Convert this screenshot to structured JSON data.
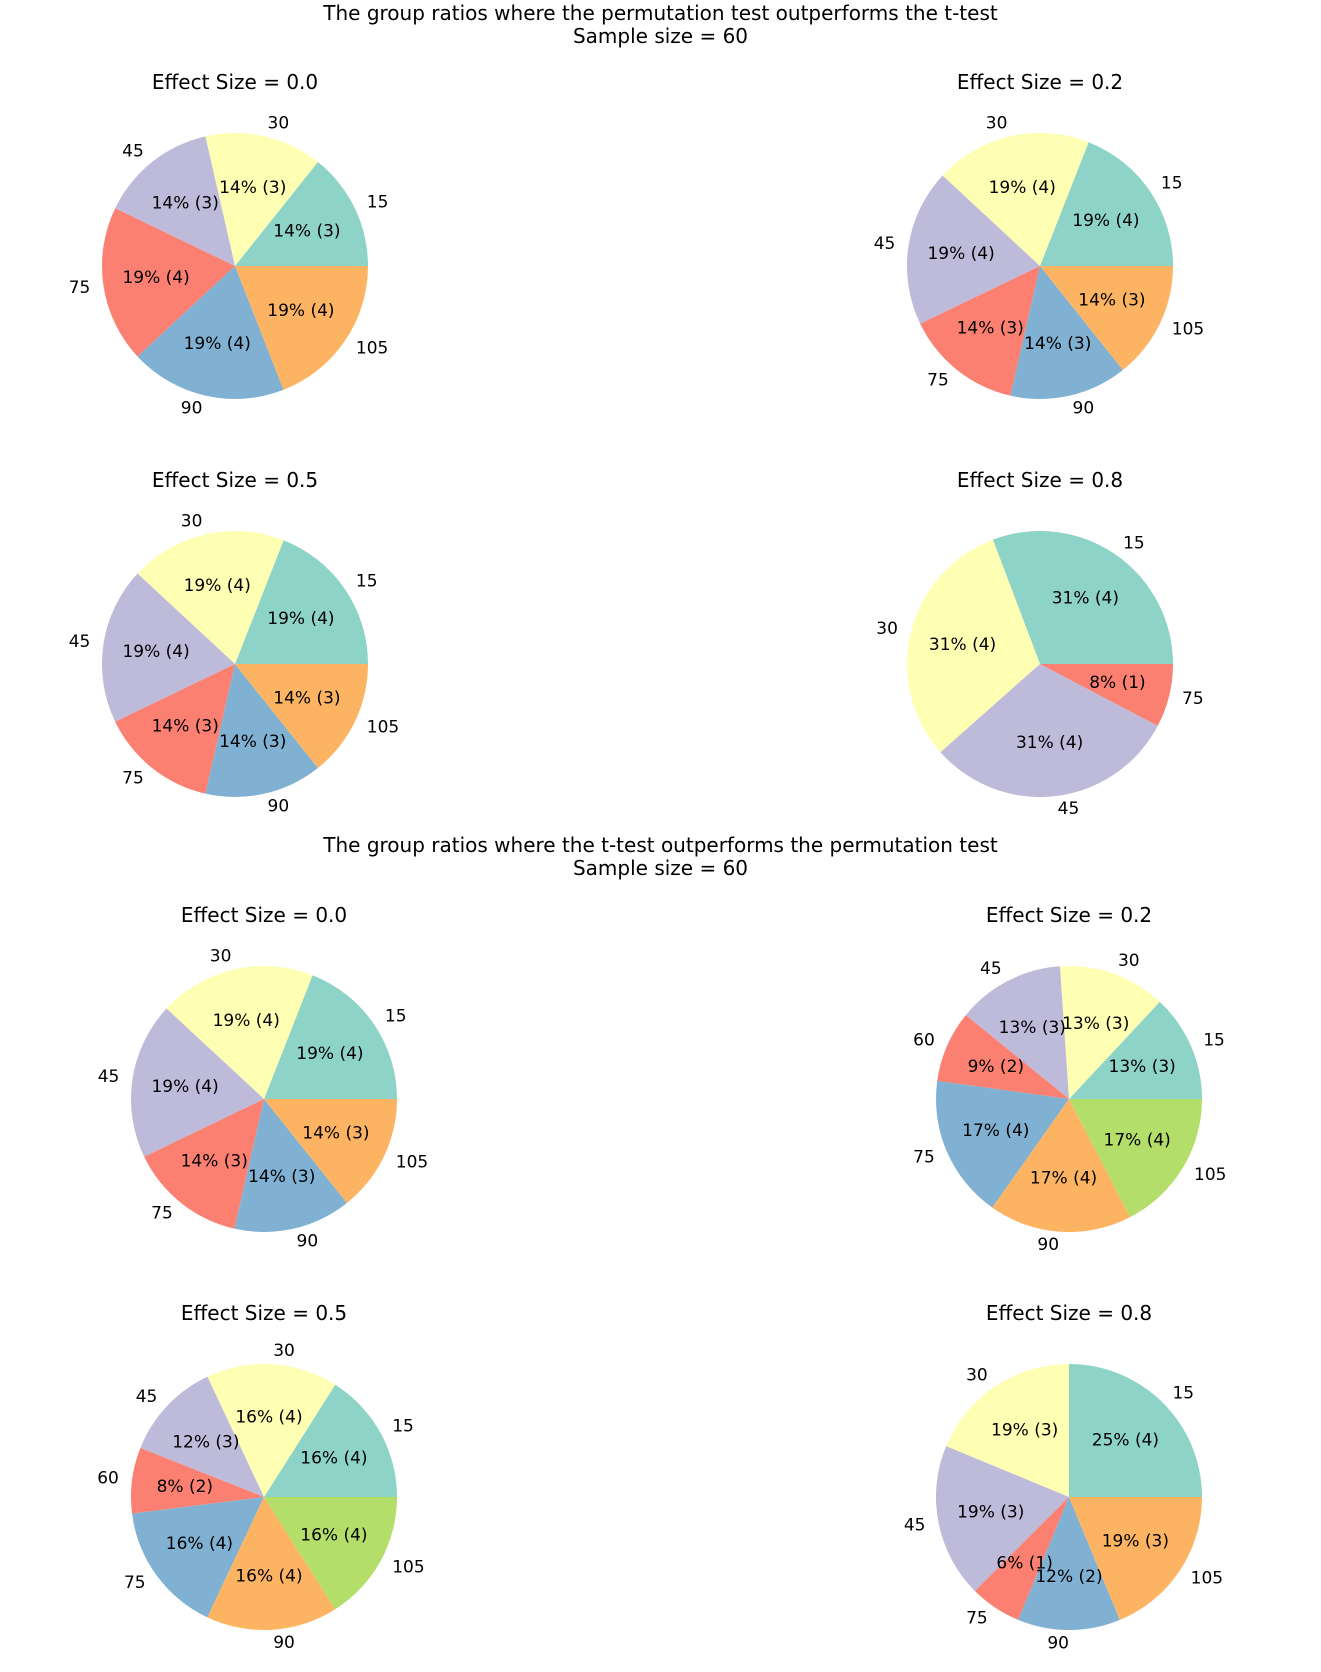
{
  "sections": [
    {
      "title_line1": "The group ratios where the permutation test outperforms the t-test",
      "title_line2": "Sample size = 60"
    },
    {
      "title_line1": "The group ratios where the t-test outperforms the permutation test",
      "title_line2": "Sample size = 60"
    }
  ],
  "colors": {
    "15": "#8dd3c7",
    "30": "#ffffb3",
    "45": "#bebada",
    "60": "#fb8072",
    "75_a": "#fb8072",
    "75_b": "#80b1d3",
    "90_a": "#80b1d3",
    "90_b": "#fdb462",
    "105_a": "#fdb462",
    "105_b": "#b3de69"
  },
  "chart_data": [
    {
      "type": "pie",
      "title": "Effect Size =  0.0",
      "labels": [
        "15",
        "30",
        "45",
        "75",
        "90",
        "105"
      ],
      "values": [
        3,
        3,
        3,
        4,
        4,
        4
      ],
      "autopct": [
        "14% (3)",
        "14% (3)",
        "14% (3)",
        "19% (4)",
        "19% (4)",
        "19% (4)"
      ],
      "colors": [
        "#8dd3c7",
        "#ffffb3",
        "#bebada",
        "#fb8072",
        "#80b1d3",
        "#fdb462"
      ]
    },
    {
      "type": "pie",
      "title": "Effect Size =  0.2",
      "labels": [
        "15",
        "30",
        "45",
        "75",
        "90",
        "105"
      ],
      "values": [
        4,
        4,
        4,
        3,
        3,
        3
      ],
      "autopct": [
        "19% (4)",
        "19% (4)",
        "19% (4)",
        "14% (3)",
        "14% (3)",
        "14% (3)"
      ],
      "colors": [
        "#8dd3c7",
        "#ffffb3",
        "#bebada",
        "#fb8072",
        "#80b1d3",
        "#fdb462"
      ]
    },
    {
      "type": "pie",
      "title": "Effect Size =  0.5",
      "labels": [
        "15",
        "30",
        "45",
        "75",
        "90",
        "105"
      ],
      "values": [
        4,
        4,
        4,
        3,
        3,
        3
      ],
      "autopct": [
        "19% (4)",
        "19% (4)",
        "19% (4)",
        "14% (3)",
        "14% (3)",
        "14% (3)"
      ],
      "colors": [
        "#8dd3c7",
        "#ffffb3",
        "#bebada",
        "#fb8072",
        "#80b1d3",
        "#fdb462"
      ]
    },
    {
      "type": "pie",
      "title": "Effect Size =  0.8",
      "labels": [
        "15",
        "30",
        "45",
        "75"
      ],
      "values": [
        4,
        4,
        4,
        1
      ],
      "autopct": [
        "31% (4)",
        "31% (4)",
        "31% (4)",
        "8% (1)"
      ],
      "colors": [
        "#8dd3c7",
        "#ffffb3",
        "#bebada",
        "#fb8072"
      ]
    },
    {
      "type": "pie",
      "title": "Effect Size =  0.0",
      "labels": [
        "15",
        "30",
        "45",
        "75",
        "90",
        "105"
      ],
      "values": [
        4,
        4,
        4,
        3,
        3,
        3
      ],
      "autopct": [
        "19% (4)",
        "19% (4)",
        "19% (4)",
        "14% (3)",
        "14% (3)",
        "14% (3)"
      ],
      "colors": [
        "#8dd3c7",
        "#ffffb3",
        "#bebada",
        "#fb8072",
        "#80b1d3",
        "#fdb462"
      ]
    },
    {
      "type": "pie",
      "title": "Effect Size =  0.2",
      "labels": [
        "15",
        "30",
        "45",
        "60",
        "75",
        "90",
        "105"
      ],
      "values": [
        3,
        3,
        3,
        2,
        4,
        4,
        4
      ],
      "autopct": [
        "13% (3)",
        "13% (3)",
        "13% (3)",
        "9% (2)",
        "17% (4)",
        "17% (4)",
        "17% (4)"
      ],
      "colors": [
        "#8dd3c7",
        "#ffffb3",
        "#bebada",
        "#fb8072",
        "#80b1d3",
        "#fdb462",
        "#b3de69"
      ]
    },
    {
      "type": "pie",
      "title": "Effect Size =  0.5",
      "labels": [
        "15",
        "30",
        "45",
        "60",
        "75",
        "90",
        "105"
      ],
      "values": [
        4,
        4,
        3,
        2,
        4,
        4,
        4
      ],
      "autopct": [
        "16% (4)",
        "16% (4)",
        "12% (3)",
        "8% (2)",
        "16% (4)",
        "16% (4)",
        "16% (4)"
      ],
      "colors": [
        "#8dd3c7",
        "#ffffb3",
        "#bebada",
        "#fb8072",
        "#80b1d3",
        "#fdb462",
        "#b3de69"
      ]
    },
    {
      "type": "pie",
      "title": "Effect Size =  0.8",
      "labels": [
        "15",
        "30",
        "45",
        "75",
        "90",
        "105"
      ],
      "values": [
        4,
        3,
        3,
        1,
        2,
        3
      ],
      "autopct": [
        "25% (4)",
        "19% (3)",
        "19% (3)",
        "6% (1)",
        "12% (2)",
        "19% (3)"
      ],
      "colors": [
        "#8dd3c7",
        "#ffffb3",
        "#bebada",
        "#fb8072",
        "#80b1d3",
        "#fdb462"
      ]
    }
  ]
}
